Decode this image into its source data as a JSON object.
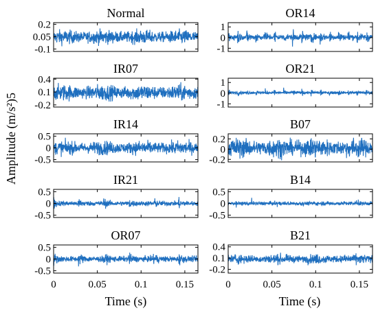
{
  "chart_data": {
    "type": "line",
    "ylabel": "Amplitude (m/s²)5",
    "xlabel": "Time (s)",
    "xlim": [
      0,
      0.165
    ],
    "xticks": [
      0,
      0.05,
      0.1,
      0.15
    ],
    "xtick_labels": [
      "0",
      "0.05",
      "0.1",
      "0.15"
    ],
    "line_color": "#1f6fbf",
    "panels": [
      {
        "title": "Normal",
        "column": 0,
        "row": 0,
        "ylim": [
          -0.13,
          0.22
        ],
        "yticks": [
          -0.1,
          0.05,
          0.2
        ],
        "ytick_labels": [
          "-0.1",
          "0.05",
          "0.2"
        ],
        "amplitude": 0.11,
        "pattern": "noise"
      },
      {
        "title": "IR07",
        "column": 0,
        "row": 1,
        "ylim": [
          -0.25,
          0.42
        ],
        "yticks": [
          -0.2,
          0.1,
          0.4
        ],
        "ytick_labels": [
          "-0.2",
          "0.1",
          "0.4"
        ],
        "amplitude": 0.24,
        "pattern": "noise"
      },
      {
        "title": "IR14",
        "column": 0,
        "row": 2,
        "ylim": [
          -0.6,
          0.6
        ],
        "yticks": [
          -0.5,
          0,
          0.5
        ],
        "ytick_labels": [
          "-0.5",
          "0",
          "0.5"
        ],
        "amplitude": 0.38,
        "pattern": "noise"
      },
      {
        "title": "IR21",
        "column": 0,
        "row": 3,
        "ylim": [
          -0.6,
          0.6
        ],
        "yticks": [
          -0.5,
          0,
          0.5
        ],
        "ytick_labels": [
          "-0.5",
          "0",
          "0.5"
        ],
        "amplitude": 0.35,
        "pattern": "bursts"
      },
      {
        "title": "OR07",
        "column": 0,
        "row": 4,
        "ylim": [
          -0.6,
          0.6
        ],
        "yticks": [
          -0.5,
          0,
          0.5
        ],
        "ytick_labels": [
          "-0.5",
          "0",
          "0.5"
        ],
        "amplitude": 0.42,
        "pattern": "bursts"
      },
      {
        "title": "OR14",
        "column": 1,
        "row": 0,
        "ylim": [
          -1.3,
          1.4
        ],
        "yticks": [
          -1,
          0,
          1
        ],
        "ytick_labels": [
          "-1",
          "0",
          "1"
        ],
        "amplitude": 1.15,
        "pattern": "periodic"
      },
      {
        "title": "OR21",
        "column": 1,
        "row": 1,
        "ylim": [
          -1.3,
          1.4
        ],
        "yticks": [
          -1,
          0,
          1
        ],
        "ytick_labels": [
          "-1",
          "0",
          "1"
        ],
        "amplitude": 0.5,
        "pattern": "periodic"
      },
      {
        "title": "B07",
        "column": 1,
        "row": 2,
        "ylim": [
          -0.25,
          0.3
        ],
        "yticks": [
          -0.2,
          0,
          0.2
        ],
        "ytick_labels": [
          "-0.2",
          "0",
          "0.2"
        ],
        "amplitude": 0.24,
        "pattern": "noise"
      },
      {
        "title": "B14",
        "column": 1,
        "row": 3,
        "ylim": [
          -0.6,
          0.6
        ],
        "yticks": [
          -0.5,
          0,
          0.5
        ],
        "ytick_labels": [
          "-0.5",
          "0",
          "0.5"
        ],
        "amplitude": 0.17,
        "pattern": "sparse"
      },
      {
        "title": "B21",
        "column": 1,
        "row": 4,
        "ylim": [
          -0.3,
          0.45
        ],
        "yticks": [
          -0.2,
          0.1,
          0.4
        ],
        "ytick_labels": [
          "-0.2",
          "0.1",
          "0.4"
        ],
        "amplitude": 0.16,
        "pattern": "noise"
      }
    ]
  }
}
